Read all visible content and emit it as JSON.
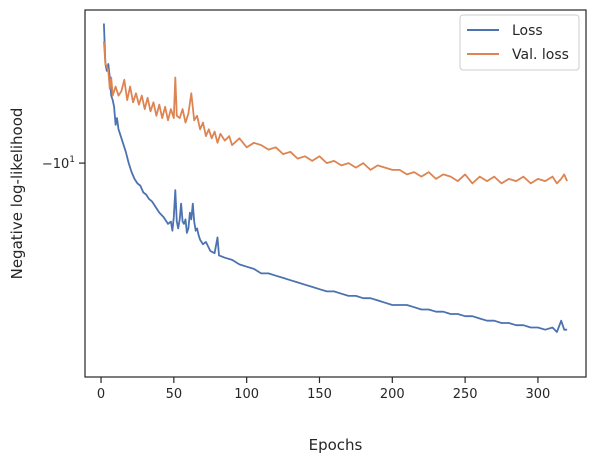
{
  "chart_data": {
    "type": "line",
    "title": "",
    "xlabel": "Epochs",
    "ylabel": "Negative log-likelihood",
    "xlim": [
      -11,
      333
    ],
    "xticks": [
      0,
      50,
      100,
      150,
      200,
      250,
      300
    ],
    "y_scale": "symlog",
    "ylim": [
      -19.5,
      -3.2
    ],
    "yticks": [
      {
        "value": -10,
        "label": "−10"
      }
    ],
    "grid": false,
    "legend_position": "top-right",
    "series": [
      {
        "name": "Loss",
        "color": "#4c72b0",
        "points": [
          [
            2,
            -3.8
          ],
          [
            3,
            -5.6
          ],
          [
            4,
            -5.9
          ],
          [
            5,
            -5.6
          ],
          [
            6,
            -6.2
          ],
          [
            7,
            -7.0
          ],
          [
            8,
            -7.2
          ],
          [
            9,
            -7.5
          ],
          [
            10,
            -8.3
          ],
          [
            11,
            -8.0
          ],
          [
            12,
            -8.5
          ],
          [
            13,
            -8.7
          ],
          [
            15,
            -9.1
          ],
          [
            17,
            -9.5
          ],
          [
            19,
            -10.0
          ],
          [
            21,
            -10.4
          ],
          [
            23,
            -10.7
          ],
          [
            25,
            -10.9
          ],
          [
            27,
            -11.0
          ],
          [
            29,
            -11.3
          ],
          [
            31,
            -11.4
          ],
          [
            33,
            -11.6
          ],
          [
            35,
            -11.7
          ],
          [
            37,
            -11.9
          ],
          [
            40,
            -12.2
          ],
          [
            43,
            -12.4
          ],
          [
            46,
            -12.7
          ],
          [
            48,
            -12.6
          ],
          [
            49,
            -13.0
          ],
          [
            50,
            -12.4
          ],
          [
            51,
            -11.2
          ],
          [
            52,
            -12.6
          ],
          [
            53,
            -12.9
          ],
          [
            54,
            -12.5
          ],
          [
            55,
            -11.8
          ],
          [
            56,
            -12.6
          ],
          [
            57,
            -12.7
          ],
          [
            58,
            -12.5
          ],
          [
            59,
            -13.1
          ],
          [
            60,
            -12.9
          ],
          [
            61,
            -12.2
          ],
          [
            62,
            -12.5
          ],
          [
            63,
            -11.8
          ],
          [
            64,
            -12.6
          ],
          [
            65,
            -13.0
          ],
          [
            66,
            -12.9
          ],
          [
            67,
            -13.2
          ],
          [
            68,
            -13.4
          ],
          [
            70,
            -13.6
          ],
          [
            72,
            -13.5
          ],
          [
            75,
            -13.9
          ],
          [
            78,
            -14.0
          ],
          [
            80,
            -13.3
          ],
          [
            81,
            -14.1
          ],
          [
            85,
            -14.2
          ],
          [
            90,
            -14.3
          ],
          [
            95,
            -14.5
          ],
          [
            100,
            -14.6
          ],
          [
            105,
            -14.7
          ],
          [
            110,
            -14.9
          ],
          [
            115,
            -14.9
          ],
          [
            120,
            -15.0
          ],
          [
            125,
            -15.1
          ],
          [
            130,
            -15.2
          ],
          [
            135,
            -15.3
          ],
          [
            140,
            -15.4
          ],
          [
            145,
            -15.5
          ],
          [
            150,
            -15.6
          ],
          [
            155,
            -15.7
          ],
          [
            160,
            -15.7
          ],
          [
            165,
            -15.8
          ],
          [
            170,
            -15.9
          ],
          [
            175,
            -15.9
          ],
          [
            180,
            -16.0
          ],
          [
            185,
            -16.0
          ],
          [
            190,
            -16.1
          ],
          [
            195,
            -16.2
          ],
          [
            200,
            -16.3
          ],
          [
            205,
            -16.3
          ],
          [
            210,
            -16.3
          ],
          [
            215,
            -16.4
          ],
          [
            220,
            -16.5
          ],
          [
            225,
            -16.5
          ],
          [
            230,
            -16.6
          ],
          [
            235,
            -16.6
          ],
          [
            240,
            -16.7
          ],
          [
            245,
            -16.7
          ],
          [
            250,
            -16.8
          ],
          [
            255,
            -16.8
          ],
          [
            260,
            -16.9
          ],
          [
            265,
            -17.0
          ],
          [
            270,
            -17.0
          ],
          [
            275,
            -17.1
          ],
          [
            280,
            -17.1
          ],
          [
            285,
            -17.2
          ],
          [
            290,
            -17.2
          ],
          [
            295,
            -17.3
          ],
          [
            300,
            -17.3
          ],
          [
            305,
            -17.4
          ],
          [
            310,
            -17.3
          ],
          [
            313,
            -17.5
          ],
          [
            316,
            -17.0
          ],
          [
            318,
            -17.4
          ],
          [
            320,
            -17.4
          ]
        ]
      },
      {
        "name": "Val. loss",
        "color": "#dd8452",
        "points": [
          [
            2,
            -4.6
          ],
          [
            3,
            -5.6
          ],
          [
            4,
            -5.7
          ],
          [
            5,
            -5.9
          ],
          [
            6,
            -6.7
          ],
          [
            7,
            -6.2
          ],
          [
            8,
            -7.0
          ],
          [
            10,
            -6.6
          ],
          [
            12,
            -7.0
          ],
          [
            14,
            -6.8
          ],
          [
            16,
            -6.3
          ],
          [
            18,
            -7.2
          ],
          [
            20,
            -6.6
          ],
          [
            22,
            -7.3
          ],
          [
            24,
            -6.9
          ],
          [
            26,
            -7.4
          ],
          [
            28,
            -7.0
          ],
          [
            30,
            -7.6
          ],
          [
            32,
            -7.1
          ],
          [
            34,
            -7.7
          ],
          [
            36,
            -7.3
          ],
          [
            38,
            -7.9
          ],
          [
            40,
            -7.4
          ],
          [
            42,
            -8.0
          ],
          [
            44,
            -7.5
          ],
          [
            46,
            -8.1
          ],
          [
            48,
            -7.6
          ],
          [
            50,
            -8.0
          ],
          [
            51,
            -6.2
          ],
          [
            52,
            -7.9
          ],
          [
            54,
            -8.0
          ],
          [
            56,
            -7.6
          ],
          [
            58,
            -8.2
          ],
          [
            60,
            -7.8
          ],
          [
            62,
            -6.9
          ],
          [
            64,
            -8.1
          ],
          [
            66,
            -7.9
          ],
          [
            68,
            -8.5
          ],
          [
            70,
            -8.2
          ],
          [
            72,
            -8.8
          ],
          [
            74,
            -8.5
          ],
          [
            76,
            -8.9
          ],
          [
            78,
            -8.6
          ],
          [
            80,
            -9.1
          ],
          [
            82,
            -8.7
          ],
          [
            85,
            -9.0
          ],
          [
            88,
            -8.8
          ],
          [
            90,
            -9.2
          ],
          [
            95,
            -8.9
          ],
          [
            100,
            -9.3
          ],
          [
            105,
            -9.1
          ],
          [
            110,
            -9.2
          ],
          [
            115,
            -9.4
          ],
          [
            120,
            -9.3
          ],
          [
            125,
            -9.6
          ],
          [
            130,
            -9.5
          ],
          [
            135,
            -9.8
          ],
          [
            140,
            -9.7
          ],
          [
            145,
            -9.9
          ],
          [
            150,
            -9.7
          ],
          [
            155,
            -10.0
          ],
          [
            160,
            -9.9
          ],
          [
            165,
            -10.1
          ],
          [
            170,
            -10.0
          ],
          [
            175,
            -10.2
          ],
          [
            180,
            -10.0
          ],
          [
            185,
            -10.3
          ],
          [
            190,
            -10.1
          ],
          [
            195,
            -10.2
          ],
          [
            200,
            -10.3
          ],
          [
            205,
            -10.3
          ],
          [
            210,
            -10.5
          ],
          [
            215,
            -10.4
          ],
          [
            220,
            -10.6
          ],
          [
            225,
            -10.4
          ],
          [
            230,
            -10.7
          ],
          [
            235,
            -10.5
          ],
          [
            240,
            -10.6
          ],
          [
            245,
            -10.8
          ],
          [
            250,
            -10.5
          ],
          [
            255,
            -10.9
          ],
          [
            260,
            -10.6
          ],
          [
            265,
            -10.8
          ],
          [
            270,
            -10.6
          ],
          [
            275,
            -10.9
          ],
          [
            280,
            -10.7
          ],
          [
            285,
            -10.8
          ],
          [
            290,
            -10.6
          ],
          [
            295,
            -10.9
          ],
          [
            300,
            -10.7
          ],
          [
            305,
            -10.8
          ],
          [
            310,
            -10.6
          ],
          [
            313,
            -10.9
          ],
          [
            316,
            -10.7
          ],
          [
            318,
            -10.5
          ],
          [
            320,
            -10.8
          ]
        ]
      }
    ]
  }
}
